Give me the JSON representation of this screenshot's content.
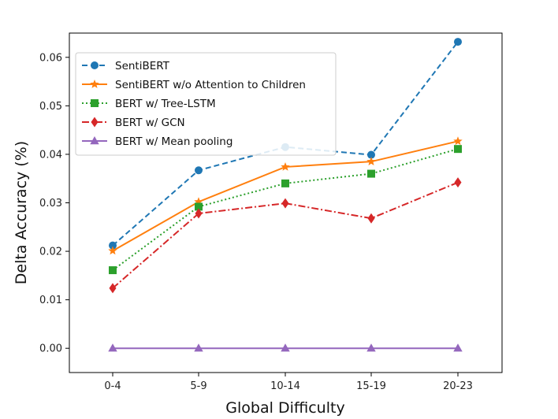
{
  "chart_data": {
    "type": "line",
    "title": "",
    "xlabel": "Global Difficulty",
    "ylabel": "Delta Accuracy (%)",
    "categories": [
      "0-4",
      "5-9",
      "10-14",
      "15-19",
      "20-23"
    ],
    "ylim": [
      -0.005,
      0.065
    ],
    "yticks": [
      "0.00",
      "0.01",
      "0.02",
      "0.03",
      "0.04",
      "0.05",
      "0.06"
    ],
    "grid": false,
    "legend_position": "top-left",
    "series": [
      {
        "name": "SentiBERT",
        "values": [
          0.0212,
          0.0367,
          0.0415,
          0.0399,
          0.0632
        ],
        "color": "#1f77b4",
        "dash": "dashed",
        "marker": "circle"
      },
      {
        "name": "SentiBERT w/o Attention to Children",
        "values": [
          0.0201,
          0.0302,
          0.0374,
          0.0385,
          0.0427
        ],
        "color": "#ff7f0e",
        "dash": "solid",
        "marker": "star"
      },
      {
        "name": "BERT w/ Tree-LSTM",
        "values": [
          0.0161,
          0.0292,
          0.034,
          0.036,
          0.0411
        ],
        "color": "#2ca02c",
        "dash": "dotted",
        "marker": "square"
      },
      {
        "name": "BERT w/ GCN",
        "values": [
          0.0124,
          0.0278,
          0.0299,
          0.0268,
          0.0342
        ],
        "color": "#d62728",
        "dash": "dashdot",
        "marker": "diamond"
      },
      {
        "name": "BERT w/ Mean pooling",
        "values": [
          0.0,
          0.0,
          0.0,
          0.0,
          0.0
        ],
        "color": "#9467bd",
        "dash": "solid",
        "marker": "triangle"
      }
    ]
  }
}
